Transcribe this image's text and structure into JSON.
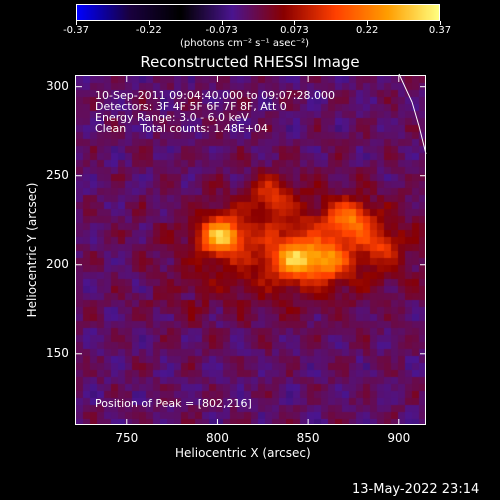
{
  "colorbar": {
    "ticks": [
      "-0.37",
      "-0.22",
      "-0.073",
      "0.073",
      "0.22",
      "0.37"
    ],
    "unit_label": "(photons cm⁻² s⁻¹ asec⁻²)",
    "colors": [
      "#0000ff",
      "#1a0040",
      "#000000",
      "#4b1590",
      "#8a0000",
      "#ff4000",
      "#ff9d00",
      "#ffff80"
    ]
  },
  "chart_data": {
    "type": "heatmap",
    "title": "Reconstructed RHESSI Image",
    "xlabel": "Heliocentric X (arcsec)",
    "ylabel": "Heliocentric Y (arcsec)",
    "xlim": [
      722,
      915
    ],
    "ylim": [
      110,
      306
    ],
    "xticks": [
      750,
      800,
      850,
      900
    ],
    "yticks": [
      150,
      200,
      250,
      300
    ],
    "peak_position": [
      802,
      216
    ],
    "sources": [
      {
        "x": 802,
        "y": 216,
        "intensity": 0.37
      },
      {
        "x": 843,
        "y": 203,
        "intensity": 0.27
      },
      {
        "x": 873,
        "y": 226,
        "intensity": 0.24
      },
      {
        "x": 860,
        "y": 202,
        "intensity": 0.22
      },
      {
        "x": 830,
        "y": 240,
        "intensity": 0.15
      },
      {
        "x": 890,
        "y": 212,
        "intensity": 0.13
      }
    ]
  },
  "annotations": {
    "time_range": "10-Sep-2011 09:04:40.000 to 09:07:28.000",
    "detectors": "Detectors: 3F 4F 5F 6F 7F 8F, Att 0",
    "energy": "Energy Range: 3.0 - 6.0 keV",
    "clean": "Clean    Total counts: 1.48E+04",
    "peak": "Position of Peak = [802,216]"
  },
  "footer": {
    "timestamp": "13-May-2022 23:14"
  }
}
